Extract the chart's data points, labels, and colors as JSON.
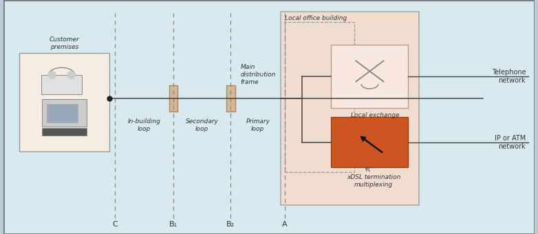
{
  "fig_width": 7.82,
  "fig_height": 3.4,
  "dpi": 100,
  "bg_outer": "#b8cdd8",
  "bg_inner": "#d8eaf0",
  "border_color": "#777777",
  "customer_box_color": "#f5ede4",
  "local_office_box_color": "#f0ddd0",
  "local_office_border": "#999999",
  "local_exchange_box_color": "#f8e8e0",
  "xdsl_box_color": "#cc5522",
  "connector_color": "#d4b898",
  "connector_edge": "#aa8866",
  "line_color": "#444444",
  "text_color": "#333333",
  "dashed_line_color": "#888888",
  "labels": {
    "customer_premises": "Customer\npremises",
    "in_building_loop": "In-building\nloop",
    "secondary_loop": "Secondary\nloop",
    "primary_loop": "Primary\nloop",
    "main_distribution_frame": "Main\ndistribution\nframe",
    "local_office_building": "Local office building",
    "local_exchange": "Local exchange",
    "xdsl_termination": "xDSL termination\nmultiplexing",
    "telephone_network": "Telephone\nnetwork",
    "ip_atm_network": "IP or ATM\nnetwork",
    "C": "C",
    "B1": "B₁",
    "B2": "B₂",
    "A": "A"
  }
}
